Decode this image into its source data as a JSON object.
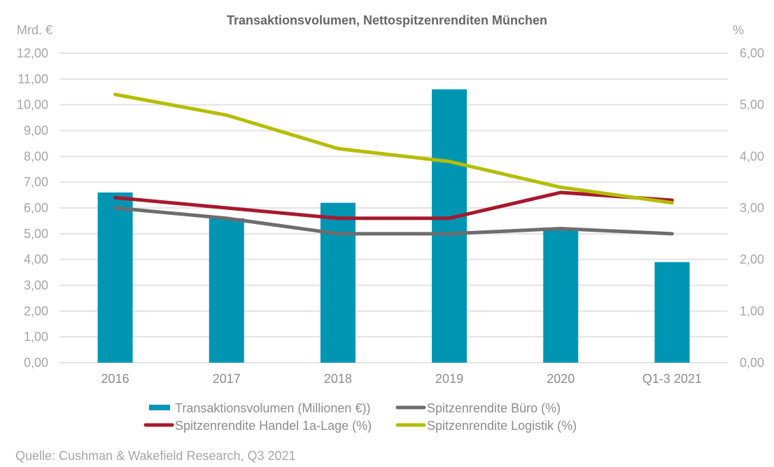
{
  "chart_data": {
    "type": "bar",
    "title": "Transaktionsvolumen, Nettospitzenrenditen München",
    "left_axis_label": "Mrd. €",
    "right_axis_label": "%",
    "categories": [
      "2016",
      "2017",
      "2018",
      "2019",
      "2020",
      "Q1-3 2021"
    ],
    "left_ylim": [
      0,
      12
    ],
    "left_ticks": [
      "0,00",
      "1,00",
      "2,00",
      "3,00",
      "4,00",
      "5,00",
      "6,00",
      "7,00",
      "8,00",
      "9,00",
      "10,00",
      "11,00",
      "12,00"
    ],
    "right_ylim": [
      0,
      6
    ],
    "right_ticks": [
      "0,00",
      "1,00",
      "2,00",
      "3,00",
      "4,00",
      "5,00",
      "6,00"
    ],
    "grid": true,
    "legend_position": "bottom",
    "series": [
      {
        "name": "Transaktionsvolumen (Millionen €))",
        "type": "bar",
        "axis": "left",
        "color": "#0095b3",
        "values": [
          6.6,
          5.6,
          6.2,
          10.6,
          5.2,
          3.9
        ]
      },
      {
        "name": "Spitzenrendite Büro (%)",
        "type": "line",
        "axis": "right",
        "color": "#6d6d6d",
        "values": [
          3.0,
          2.8,
          2.5,
          2.5,
          2.6,
          2.5
        ]
      },
      {
        "name": "Spitzenrendite Handel 1a-Lage (%)",
        "type": "line",
        "axis": "right",
        "color": "#a6192e",
        "values": [
          3.2,
          3.0,
          2.8,
          2.8,
          3.3,
          3.15
        ]
      },
      {
        "name": "Spitzenrendite Logistik  (%)",
        "type": "line",
        "axis": "right",
        "color": "#b5bd00",
        "values": [
          5.2,
          4.8,
          4.15,
          3.9,
          3.4,
          3.1
        ]
      }
    ],
    "source": "Quelle: Cushman & Wakefield Research, Q3 2021"
  }
}
